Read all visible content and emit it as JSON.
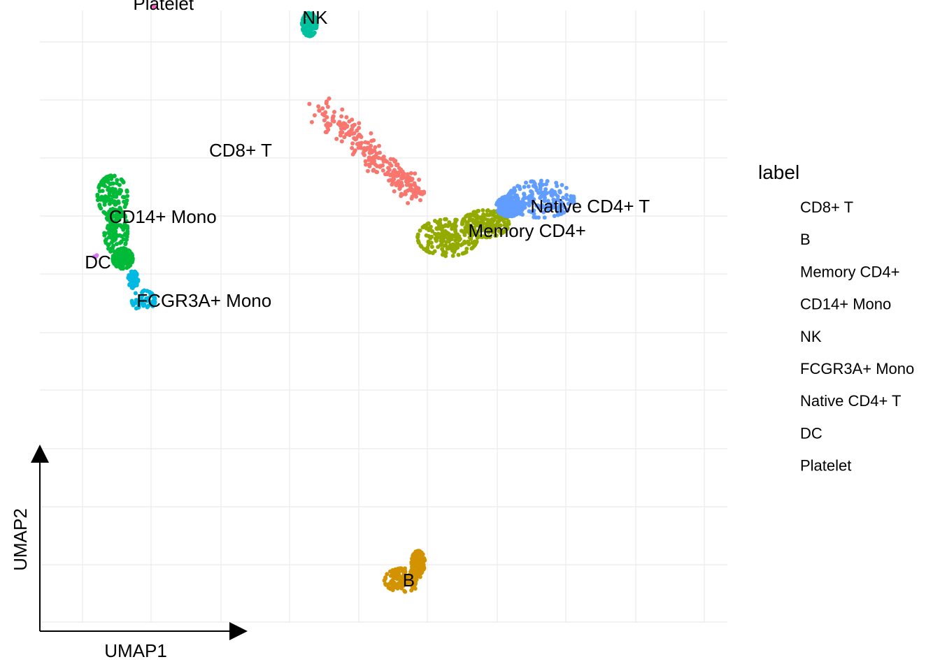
{
  "chart_data": {
    "type": "scatter",
    "title": "",
    "xlabel": "UMAP1",
    "ylabel": "UMAP2",
    "xlim": [
      -10.6,
      9.3
    ],
    "ylim": [
      -7.2,
      10.3
    ],
    "grid": true,
    "legend": {
      "title": "label",
      "placement": "right",
      "entries": [
        "CD8+ T",
        "B",
        "Memory CD4+",
        "CD14+ Mono",
        "NK",
        "FCGR3A+ Mono",
        "Native CD4+ T",
        "DC",
        "Platelet"
      ]
    },
    "series": [
      {
        "name": "CD8+ T",
        "color": "#F8766D",
        "label_at": [
          -5.7,
          6.3
        ],
        "n": 260,
        "path": [
          [
            -2.5,
            7.5
          ],
          [
            -1.6,
            6.8
          ],
          [
            -0.9,
            6.1
          ],
          [
            -0.2,
            5.5
          ],
          [
            0.4,
            5.0
          ]
        ],
        "spread": 0.32
      },
      {
        "name": "B",
        "color": "#D39200",
        "label_at": [
          -0.1,
          -6.0
        ],
        "n": 260,
        "blobs": [
          {
            "c": [
              -0.1,
              -6.0
            ],
            "r": [
              0.55,
              0.35
            ]
          },
          {
            "c": [
              0.35,
              -5.5
            ],
            "r": [
              0.2,
              0.35
            ]
          }
        ]
      },
      {
        "name": "Memory CD4+",
        "color": "#93AA00",
        "label_at": [
          1.8,
          4.0
        ],
        "n": 420,
        "blobs": [
          {
            "c": [
              1.2,
              3.8
            ],
            "r": [
              0.9,
              0.55
            ]
          },
          {
            "c": [
              2.3,
              4.2
            ],
            "r": [
              0.7,
              0.4
            ]
          }
        ]
      },
      {
        "name": "CD14+ Mono",
        "color": "#00BA38",
        "label_at": [
          -8.6,
          4.4
        ],
        "n": 380,
        "blobs": [
          {
            "c": [
              -8.5,
              5.0
            ],
            "r": [
              0.45,
              0.6
            ]
          },
          {
            "c": [
              -8.4,
              4.0
            ],
            "r": [
              0.35,
              0.7
            ]
          },
          {
            "c": [
              -8.2,
              3.2
            ],
            "r": [
              0.3,
              0.3
            ]
          }
        ]
      },
      {
        "name": "NK",
        "color": "#00C19F",
        "label_at": [
          -3.0,
          10.1
        ],
        "n": 120,
        "blobs": [
          {
            "c": [
              -2.8,
              9.9
            ],
            "r": [
              0.22,
              0.35
            ]
          }
        ]
      },
      {
        "name": "FCGR3A+ Mono",
        "color": "#00B9E3",
        "label_at": [
          -7.8,
          2.0
        ],
        "n": 110,
        "blobs": [
          {
            "c": [
              -7.6,
              2.0
            ],
            "r": [
              0.35,
              0.3
            ]
          },
          {
            "c": [
              -7.9,
              2.6
            ],
            "r": [
              0.15,
              0.25
            ]
          }
        ]
      },
      {
        "name": "Native CD4+ T",
        "color": "#619CFF",
        "label_at": [
          3.6,
          4.7
        ],
        "n": 360,
        "blobs": [
          {
            "c": [
              3.9,
              4.9
            ],
            "r": [
              1.0,
              0.55
            ]
          },
          {
            "c": [
              3.0,
              4.7
            ],
            "r": [
              0.4,
              0.3
            ]
          }
        ]
      },
      {
        "name": "DC",
        "color": "#DB72FB",
        "label_at": [
          -9.3,
          3.1
        ],
        "n": 4,
        "blobs": [
          {
            "c": [
              -9.0,
              3.3
            ],
            "r": [
              0.05,
              0.05
            ]
          }
        ]
      },
      {
        "name": "Platelet",
        "color": "#FF61C3",
        "label_at": [
          -7.9,
          10.5
        ],
        "n": 2,
        "blobs": [
          {
            "c": [
              -7.3,
              10.4
            ],
            "r": [
              0.03,
              0.03
            ]
          }
        ]
      }
    ]
  },
  "labels": {
    "cd8": "CD8+ T",
    "b": "B",
    "memory_cd4": "Memory CD4+",
    "cd14_mono": "CD14+ Mono",
    "nk": "NK",
    "fcgr3a_mono": "FCGR3A+ Mono",
    "native_cd4": "Native CD4+ T",
    "dc": "DC",
    "platelet": "Platelet"
  },
  "axes": {
    "x_title": "UMAP1",
    "y_title": "UMAP2"
  },
  "legend": {
    "title": "label",
    "entries": [
      "CD8+ T",
      "B",
      "Memory CD4+",
      "CD14+ Mono",
      "NK",
      "FCGR3A+ Mono",
      "Native CD4+ T",
      "DC",
      "Platelet"
    ]
  }
}
